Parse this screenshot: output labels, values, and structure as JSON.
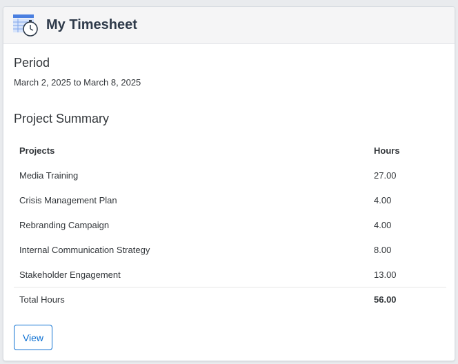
{
  "card": {
    "title": "My Timesheet",
    "icon": "timesheet-stopwatch-icon"
  },
  "period": {
    "heading": "Period",
    "value": "March 2, 2025 to March 8, 2025"
  },
  "summary": {
    "heading": "Project Summary",
    "columns": {
      "project": "Projects",
      "hours": "Hours"
    },
    "rows": [
      {
        "project": "Media Training",
        "hours": "27.00"
      },
      {
        "project": "Crisis Management Plan",
        "hours": "4.00"
      },
      {
        "project": "Rebranding Campaign",
        "hours": "4.00"
      },
      {
        "project": "Internal Communication Strategy",
        "hours": "8.00"
      },
      {
        "project": "Stakeholder Engagement",
        "hours": "13.00"
      }
    ],
    "total": {
      "label": "Total Hours",
      "value": "56.00"
    }
  },
  "actions": {
    "view_label": "View"
  },
  "colors": {
    "accent": "#0a6ed1",
    "icon_blue": "#4a7fe0"
  }
}
